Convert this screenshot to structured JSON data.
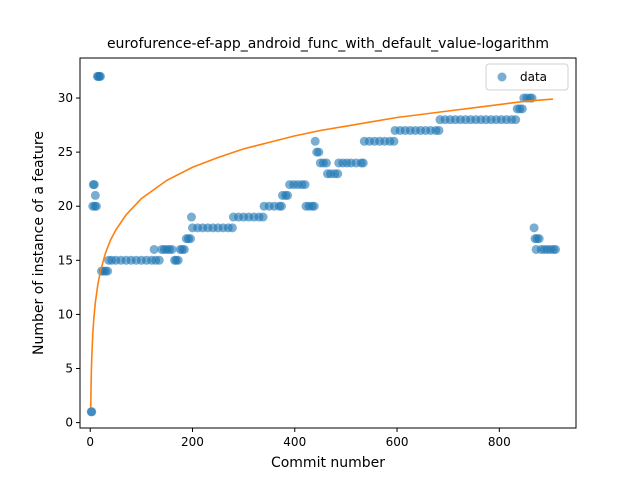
{
  "chart_data": {
    "type": "scatter",
    "title": "eurofurence-ef-app_android_func_with_default_value-logarithm",
    "xlabel": "Commit number",
    "ylabel": "Number of instance of a feature",
    "xlim": [
      -20,
      950
    ],
    "ylim": [
      -0.5,
      33.7
    ],
    "xticks": [
      0,
      200,
      400,
      600,
      800
    ],
    "yticks": [
      0,
      5,
      10,
      15,
      20,
      25,
      30
    ],
    "grid": false,
    "legend": {
      "position": "top-right",
      "entries": [
        "data"
      ]
    },
    "colors": {
      "data": "#1f77b4",
      "fit": "#ff7f0e"
    },
    "series": [
      {
        "name": "data",
        "kind": "scatter",
        "points": [
          [
            2,
            1
          ],
          [
            3,
            1
          ],
          [
            5,
            20
          ],
          [
            6,
            22
          ],
          [
            8,
            22
          ],
          [
            9,
            20
          ],
          [
            10,
            21
          ],
          [
            12,
            20
          ],
          [
            14,
            32
          ],
          [
            16,
            32
          ],
          [
            18,
            32
          ],
          [
            20,
            32
          ],
          [
            22,
            14
          ],
          [
            26,
            14
          ],
          [
            30,
            14
          ],
          [
            34,
            14
          ],
          [
            36,
            15
          ],
          [
            42,
            15
          ],
          [
            50,
            15
          ],
          [
            60,
            15
          ],
          [
            70,
            15
          ],
          [
            80,
            15
          ],
          [
            90,
            15
          ],
          [
            100,
            15
          ],
          [
            110,
            15
          ],
          [
            120,
            15
          ],
          [
            125,
            16
          ],
          [
            128,
            15
          ],
          [
            135,
            15
          ],
          [
            140,
            16
          ],
          [
            145,
            16
          ],
          [
            150,
            16
          ],
          [
            155,
            16
          ],
          [
            160,
            16
          ],
          [
            165,
            15
          ],
          [
            168,
            15
          ],
          [
            172,
            15
          ],
          [
            176,
            16
          ],
          [
            180,
            16
          ],
          [
            184,
            16
          ],
          [
            188,
            17
          ],
          [
            192,
            17
          ],
          [
            196,
            17
          ],
          [
            198,
            19
          ],
          [
            200,
            18
          ],
          [
            210,
            18
          ],
          [
            220,
            18
          ],
          [
            230,
            18
          ],
          [
            240,
            18
          ],
          [
            250,
            18
          ],
          [
            260,
            18
          ],
          [
            270,
            18
          ],
          [
            278,
            18
          ],
          [
            280,
            19
          ],
          [
            290,
            19
          ],
          [
            300,
            19
          ],
          [
            310,
            19
          ],
          [
            320,
            19
          ],
          [
            330,
            19
          ],
          [
            338,
            19
          ],
          [
            340,
            20
          ],
          [
            350,
            20
          ],
          [
            360,
            20
          ],
          [
            370,
            20
          ],
          [
            374,
            20
          ],
          [
            376,
            21
          ],
          [
            382,
            21
          ],
          [
            386,
            21
          ],
          [
            390,
            22
          ],
          [
            398,
            22
          ],
          [
            406,
            22
          ],
          [
            414,
            22
          ],
          [
            420,
            22
          ],
          [
            422,
            20
          ],
          [
            428,
            20
          ],
          [
            434,
            20
          ],
          [
            438,
            20
          ],
          [
            440,
            26
          ],
          [
            443,
            25
          ],
          [
            447,
            25
          ],
          [
            450,
            24
          ],
          [
            456,
            24
          ],
          [
            462,
            24
          ],
          [
            464,
            23
          ],
          [
            470,
            23
          ],
          [
            478,
            23
          ],
          [
            484,
            23
          ],
          [
            486,
            24
          ],
          [
            494,
            24
          ],
          [
            502,
            24
          ],
          [
            510,
            24
          ],
          [
            520,
            24
          ],
          [
            530,
            24
          ],
          [
            534,
            24
          ],
          [
            536,
            26
          ],
          [
            546,
            26
          ],
          [
            556,
            26
          ],
          [
            566,
            26
          ],
          [
            576,
            26
          ],
          [
            586,
            26
          ],
          [
            594,
            26
          ],
          [
            596,
            27
          ],
          [
            606,
            27
          ],
          [
            616,
            27
          ],
          [
            626,
            27
          ],
          [
            636,
            27
          ],
          [
            646,
            27
          ],
          [
            656,
            27
          ],
          [
            666,
            27
          ],
          [
            676,
            27
          ],
          [
            682,
            27
          ],
          [
            684,
            28
          ],
          [
            694,
            28
          ],
          [
            704,
            28
          ],
          [
            714,
            28
          ],
          [
            724,
            28
          ],
          [
            734,
            28
          ],
          [
            744,
            28
          ],
          [
            754,
            28
          ],
          [
            764,
            28
          ],
          [
            774,
            28
          ],
          [
            784,
            28
          ],
          [
            794,
            28
          ],
          [
            804,
            28
          ],
          [
            814,
            28
          ],
          [
            824,
            28
          ],
          [
            832,
            28
          ],
          [
            835,
            29
          ],
          [
            840,
            29
          ],
          [
            845,
            29
          ],
          [
            848,
            30
          ],
          [
            854,
            30
          ],
          [
            860,
            30
          ],
          [
            864,
            30
          ],
          [
            868,
            18
          ],
          [
            870,
            17
          ],
          [
            872,
            16
          ],
          [
            874,
            17
          ],
          [
            878,
            17
          ],
          [
            882,
            16
          ],
          [
            888,
            16
          ],
          [
            894,
            16
          ],
          [
            900,
            16
          ],
          [
            906,
            16
          ],
          [
            910,
            16
          ]
        ]
      },
      {
        "name": "",
        "kind": "line",
        "points": [
          [
            1,
            1.4
          ],
          [
            2,
            4.3
          ],
          [
            3,
            6.0
          ],
          [
            5,
            8.2
          ],
          [
            7,
            9.6
          ],
          [
            10,
            11.1
          ],
          [
            15,
            12.8
          ],
          [
            20,
            14.0
          ],
          [
            30,
            15.7
          ],
          [
            40,
            16.9
          ],
          [
            50,
            17.8
          ],
          [
            70,
            19.2
          ],
          [
            100,
            20.7
          ],
          [
            150,
            22.4
          ],
          [
            200,
            23.6
          ],
          [
            250,
            24.5
          ],
          [
            300,
            25.3
          ],
          [
            350,
            25.9
          ],
          [
            400,
            26.5
          ],
          [
            450,
            27.0
          ],
          [
            500,
            27.4
          ],
          [
            550,
            27.8
          ],
          [
            600,
            28.2
          ],
          [
            650,
            28.5
          ],
          [
            700,
            28.8
          ],
          [
            750,
            29.1
          ],
          [
            800,
            29.4
          ],
          [
            850,
            29.7
          ],
          [
            905,
            29.9
          ]
        ]
      }
    ]
  }
}
